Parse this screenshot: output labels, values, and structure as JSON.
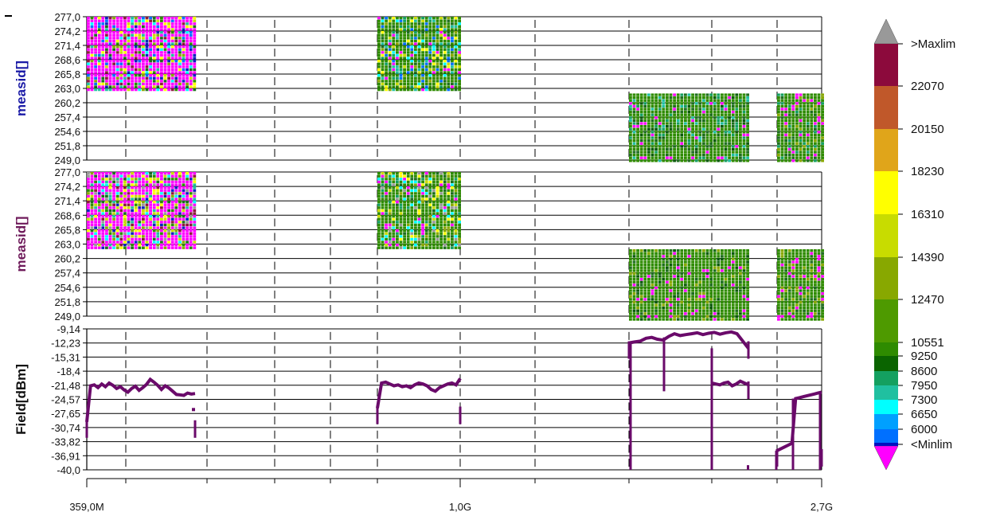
{
  "chart_data": {
    "type": "heatmap",
    "x_ticks": [
      "359,0M",
      "1,0G",
      "2,7G"
    ],
    "panels": [
      {
        "kind": "heatmap",
        "ylabel": "measid[]",
        "ylabel_color": "#1a1aa6",
        "y_ticks": [
          "277,0",
          "274,2",
          "271,4",
          "268,6",
          "265,8",
          "263,0",
          "260,2",
          "257,4",
          "254,6",
          "251,8",
          "249,0"
        ],
        "ylim": [
          249.0,
          277.0
        ],
        "blocks": [
          {
            "x_from": "359,0M",
            "x_to": "≈560M",
            "y_from": 263.0,
            "y_to": 277.0,
            "palette": [
              "#ff00ff",
              "#ff00ff",
              "#ff00ff",
              "#c8dc00",
              "#2e8b00",
              "#1e6e1e",
              "#20c0a0",
              "#ffff00",
              "#00ffff",
              "#8c1a3c",
              "#1020c0",
              "#88a800",
              "#0070ff",
              "#ff00ff"
            ]
          },
          {
            "x_from": "≈880M",
            "x_to": "1,0G",
            "y_from": 263.0,
            "y_to": 277.0,
            "palette": [
              "#2e8b00",
              "#2e8b00",
              "#1e6e1e",
              "#20c0a0",
              "#00ffff",
              "#88a800",
              "#c8dc00",
              "#14a060",
              "#ff00ff",
              "#0070ff",
              "#ffff00",
              "#2e8b00"
            ]
          },
          {
            "x_from": "≈1,6G",
            "x_to": "≈2,1G",
            "y_from": 249.0,
            "y_to": 262.0,
            "palette": [
              "#2e8b00",
              "#1e6e1e",
              "#2e8b00",
              "#14a060",
              "#2e8b00",
              "#0a5a0a",
              "#2e8b00",
              "#20c0a0",
              "#1e6e1e",
              "#2e8b00",
              "#ff00ff"
            ]
          },
          {
            "x_from": "≈2,5G",
            "x_to": "2,7G",
            "y_from": 249.0,
            "y_to": 262.0,
            "palette": [
              "#2e8b00",
              "#1e6e1e",
              "#2e8b00",
              "#14a060",
              "#2e8b00",
              "#88a800",
              "#2e8b00",
              "#ff00ff"
            ]
          }
        ]
      },
      {
        "kind": "heatmap",
        "ylabel": "measid[]",
        "ylabel_color": "#6e1a5a",
        "y_ticks": [
          "277,0",
          "274,2",
          "271,4",
          "268,6",
          "265,8",
          "263,0",
          "260,2",
          "257,4",
          "254,6",
          "251,8",
          "249,0"
        ],
        "ylim": [
          249.0,
          277.0
        ],
        "blocks": [
          {
            "x_from": "359,0M",
            "x_to": "≈560M",
            "y_from": 263.0,
            "y_to": 277.0,
            "palette": [
              "#ff00ff",
              "#c8dc00",
              "#ffff00",
              "#2e8b00",
              "#1e6e1e",
              "#88a800",
              "#8c1a3c",
              "#20c0a0",
              "#00ffff",
              "#999999",
              "#1020c0",
              "#ff00ff",
              "#c8dc00"
            ]
          },
          {
            "x_from": "≈880M",
            "x_to": "1,0G",
            "y_from": 263.0,
            "y_to": 277.0,
            "palette": [
              "#2e8b00",
              "#2e8b00",
              "#88a800",
              "#1e6e1e",
              "#999999",
              "#c8dc00",
              "#00ffff",
              "#2e8b00",
              "#ff00ff",
              "#ffff00",
              "#14a060"
            ]
          },
          {
            "x_from": "≈1,6G",
            "x_to": "≈2,1G",
            "y_from": 249.0,
            "y_to": 262.0,
            "palette": [
              "#2e8b00",
              "#1e6e1e",
              "#2e8b00",
              "#88a800",
              "#2e8b00",
              "#0a5a0a",
              "#2e8b00",
              "#ff00ff"
            ]
          },
          {
            "x_from": "≈2,5G",
            "x_to": "2,7G",
            "y_from": 249.0,
            "y_to": 262.0,
            "palette": [
              "#2e8b00",
              "#1e6e1e",
              "#2e8b00",
              "#88a800",
              "#2e8b00",
              "#ff00ff"
            ]
          }
        ]
      },
      {
        "kind": "line",
        "ylabel": "Field[dBm]",
        "ylabel_color": "#111111",
        "y_ticks": [
          "-9,14",
          "-12,23",
          "-15,31",
          "-18,4",
          "-21,48",
          "-24,57",
          "-27,65",
          "-30,74",
          "-33,82",
          "-36,91",
          "-40,0"
        ],
        "ylim": [
          -40.0,
          -9.14
        ],
        "line_color": "#6a0a6a",
        "segments": [
          {
            "x_from": "359,0M",
            "x_to": "≈560M",
            "points": [
              -29.5,
              -21.6,
              -21.4,
              -22.0,
              -21.2,
              -21.8,
              -21.0,
              -21.5,
              -22.2,
              -21.8,
              -22.5,
              -23.0,
              -22.2,
              -21.7,
              -22.6,
              -22.0,
              -21.3,
              -20.2,
              -20.8,
              -21.5,
              -22.4,
              -21.6,
              -22.1,
              -22.8,
              -23.5,
              -23.6,
              -23.7,
              -23.2,
              -23.4,
              -23.3
            ]
          },
          {
            "x_from": "≈880M",
            "x_to": "1,0G",
            "points": [
              -26.5,
              -21.0,
              -20.8,
              -21.2,
              -21.6,
              -21.4,
              -21.8,
              -21.6,
              -22.0,
              -21.4,
              -21.0,
              -21.2,
              -21.6,
              -22.4,
              -22.8,
              -22.0,
              -21.6,
              -21.2,
              -21.0,
              -21.4,
              -20.0
            ]
          },
          {
            "x_from": "≈1,6G",
            "x_to": "≈2,1G",
            "points": [
              -12.2,
              -12.0,
              -11.8,
              -11.2,
              -11.0,
              -11.4,
              -11.6,
              -10.8,
              -10.2,
              -10.6,
              -10.4,
              -10.2,
              -10.0,
              -10.4,
              -10.1,
              -9.9,
              -10.3,
              -10.0,
              -9.8,
              -10.2,
              -11.8,
              -13.4
            ]
          },
          {
            "x_from": "≈2,1G",
            "x_to": "≈2,3G",
            "points": [
              -21.0,
              -21.2,
              -21.4,
              -21.0,
              -20.8,
              -21.6,
              -21.2,
              -20.6,
              -21.0,
              -21.4
            ]
          },
          {
            "x_from": "≈2,5G",
            "x_to": "2,7G",
            "points": [
              -35.8,
              -35.4,
              -35.0,
              -34.6,
              -34.2,
              -24.4,
              -24.2,
              -24.0,
              -23.8,
              -23.6,
              -23.4,
              -23.2,
              -23.0
            ]
          }
        ]
      }
    ],
    "legend": {
      "labels": [
        ">Maxlim",
        "22070",
        "20150",
        "18230",
        "16310",
        "14390",
        "12470",
        "10551",
        "9250",
        "8600",
        "7950",
        "7300",
        "6650",
        "6000",
        "<Minlim"
      ],
      "cap_top_color": "#999999",
      "cap_bottom_color": "#ff00ff",
      "bands": [
        {
          "color": "#8c0a3c"
        },
        {
          "color": "#c0582a"
        },
        {
          "color": "#e0a51a"
        },
        {
          "color": "#ffff00"
        },
        {
          "color": "#c8dc00"
        },
        {
          "color": "#88a800"
        },
        {
          "color": "#4e9a00"
        },
        {
          "color": "#2e8b00"
        },
        {
          "color": "#0a6400"
        },
        {
          "color": "#14a060"
        },
        {
          "color": "#20c0a0"
        },
        {
          "color": "#00ffff"
        },
        {
          "color": "#00a0ff"
        },
        {
          "color": "#0070ff"
        },
        {
          "color": "#0010c0"
        }
      ]
    },
    "grid": true
  }
}
